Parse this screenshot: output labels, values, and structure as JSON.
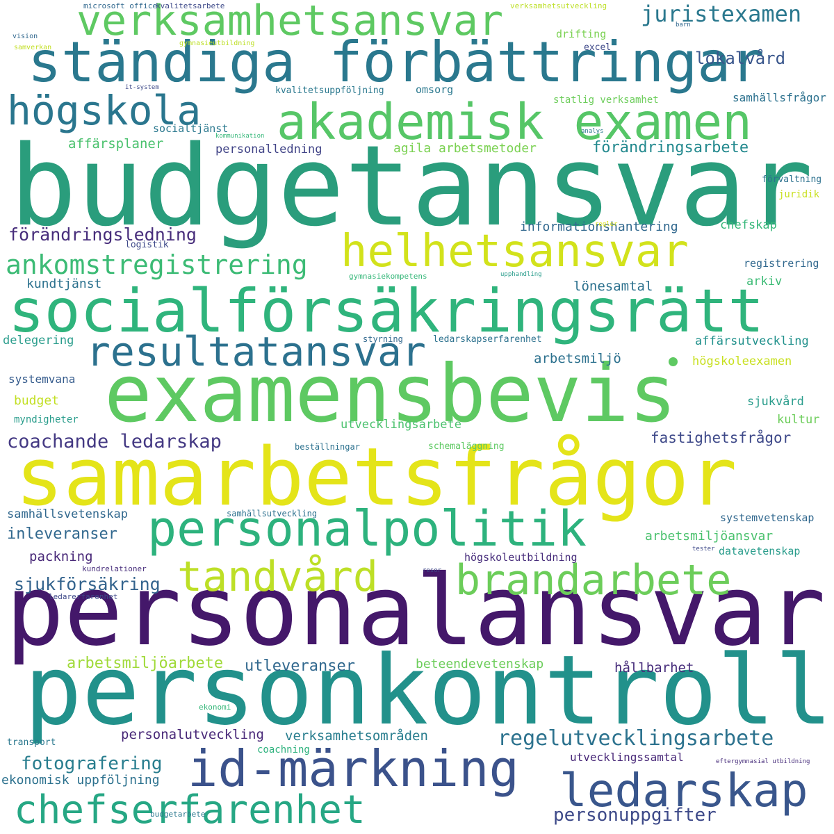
{
  "words": {
    "budgetansvar": {
      "text": "budgetansvar",
      "color": "#2a9d7c"
    },
    "personalansvar": {
      "text": "personalansvar",
      "color": "#44186a"
    },
    "personkontroll": {
      "text": "personkontroll",
      "color": "#22918b"
    },
    "samarbetsfragor": {
      "text": "samarbetsfrågor",
      "color": "#e4e419"
    },
    "examensbevis": {
      "text": "examensbevis",
      "color": "#5ec962"
    },
    "socialforsakringsratt": {
      "text": "socialförsäkringsrätt",
      "color": "#2fb47c"
    },
    "standiga_forbattringar": {
      "text": "ständiga förbättringar",
      "color": "#2a788e"
    },
    "akademisk_examen": {
      "text": "akademisk examen",
      "color": "#56c667"
    },
    "id_markning": {
      "text": "id-märkning",
      "color": "#3b528b"
    },
    "personalpolitik": {
      "text": "personalpolitik",
      "color": "#2db27d"
    },
    "verksamhetsansvar": {
      "text": "verksamhetsansvar",
      "color": "#5ec962"
    },
    "helhetsansvar": {
      "text": "helhetsansvar",
      "color": "#d2e21b"
    },
    "resultatansvar": {
      "text": "resultatansvar",
      "color": "#2c718e"
    },
    "hogskola": {
      "text": "högskola",
      "color": "#2a768e"
    },
    "brandarbete": {
      "text": "brandarbete",
      "color": "#6ccd5a"
    },
    "tandvard": {
      "text": "tandvård",
      "color": "#bddf26"
    },
    "ledarskap": {
      "text": "ledarskap",
      "color": "#39568c"
    },
    "chefserfarenhet": {
      "text": "chefserfarenhet",
      "color": "#26a784"
    },
    "ankomstregistrering": {
      "text": "ankomstregistrering",
      "color": "#3cbb75"
    },
    "juristexamen": {
      "text": "juristexamen",
      "color": "#2a788e"
    },
    "lokalvard": {
      "text": "lokalvård",
      "color": "#39568c"
    },
    "forandringsarbete": {
      "text": "förändringsarbete",
      "color": "#23898e"
    },
    "coachande_ledarskap": {
      "text": "coachande ledarskap",
      "color": "#443983"
    },
    "forandringsledning": {
      "text": "förändringsledning",
      "color": "#472d7b"
    },
    "regelutvecklingsarbete": {
      "text": "regelutvecklingsarbete",
      "color": "#2c728e"
    },
    "personuppgifter": {
      "text": "personuppgifter",
      "color": "#3e4a89"
    },
    "fotografering": {
      "text": "fotografering",
      "color": "#287d8e"
    },
    "sjukforsakring": {
      "text": "sjukförsäkring",
      "color": "#33638d"
    },
    "fastighetsfragor": {
      "text": "fastighetsfrågor",
      "color": "#3e4989"
    },
    "arbetsmiljoarbete": {
      "text": "arbetsmiljöarbete",
      "color": "#a0da39"
    },
    "utleveranser": {
      "text": "utleveranser",
      "color": "#31688e"
    },
    "personalutveckling": {
      "text": "personalutveckling",
      "color": "#482878"
    },
    "verksamhetsomraden": {
      "text": "verksamhetsområden",
      "color": "#287d8e"
    },
    "inleveranser": {
      "text": "inleveranser",
      "color": "#31688e"
    },
    "packning": {
      "text": "packning",
      "color": "#482878"
    },
    "samhallsvetenskap": {
      "text": "samhällsvetenskap",
      "color": "#31688e"
    },
    "affarsplaner": {
      "text": "affärsplaner",
      "color": "#4ac16d"
    },
    "socialtjanst": {
      "text": "socialtjänst",
      "color": "#2a788e"
    },
    "personalledning": {
      "text": "personalledning",
      "color": "#414487"
    },
    "agila_arbetsmetoder": {
      "text": "agila arbetsmetoder",
      "color": "#7ad151"
    },
    "informationshantering": {
      "text": "informationshantering",
      "color": "#31688e"
    },
    "chefskap": {
      "text": "chefskap",
      "color": "#35b779"
    },
    "kundtjanst": {
      "text": "kundtjänst",
      "color": "#2c718e"
    },
    "lonesamtal": {
      "text": "lönesamtal",
      "color": "#2c718e"
    },
    "arkiv": {
      "text": "arkiv",
      "color": "#3cbb75"
    },
    "delegering": {
      "text": "delegering",
      "color": "#2a9d8c"
    },
    "affarsutveckling": {
      "text": "affärsutveckling",
      "color": "#21918c"
    },
    "arbetsmiljo": {
      "text": "arbetsmiljö",
      "color": "#2c718e"
    },
    "hogskoleexamen": {
      "text": "högskoleexamen",
      "color": "#c8e020"
    },
    "systemvana": {
      "text": "systemvana",
      "color": "#365c8d"
    },
    "budget": {
      "text": "budget",
      "color": "#c2df23"
    },
    "myndigheter": {
      "text": "myndigheter",
      "color": "#2a9d8c"
    },
    "sjukvard": {
      "text": "sjukvård",
      "color": "#2a9d8c"
    },
    "kultur": {
      "text": "kultur",
      "color": "#6ccd5a"
    },
    "utvecklingsarbete": {
      "text": "utvecklingsarbete",
      "color": "#4ac16d"
    },
    "bestallningar": {
      "text": "beställningar",
      "color": "#2c718e"
    },
    "schemalaggning": {
      "text": "schemaläggning",
      "color": "#5ec962"
    },
    "samhallsutveckling": {
      "text": "samhällsutveckling",
      "color": "#2c718e"
    },
    "systemvetenskap": {
      "text": "systemvetenskap",
      "color": "#31688e"
    },
    "arbetsmiljoansvar": {
      "text": "arbetsmiljöansvar",
      "color": "#4ac16d"
    },
    "hogskoleutbildning": {
      "text": "högskoleutbildning",
      "color": "#472d7b"
    },
    "datavetenskap": {
      "text": "datavetenskap",
      "color": "#2a9d8c"
    },
    "tester": {
      "text": "tester",
      "color": "#3e4989"
    },
    "kundrelationer": {
      "text": "kundrelationer",
      "color": "#472d7b"
    },
    "ledarerfarenhet": {
      "text": "ledarerfarenhet",
      "color": "#3e4989"
    },
    "resor": {
      "text": "resor",
      "color": "#3e4989"
    },
    "beteendevetenskap": {
      "text": "beteendevetenskap",
      "color": "#6ccd5a"
    },
    "hallbarhet": {
      "text": "hållbarhet",
      "color": "#472d7b"
    },
    "ekonomi": {
      "text": "ekonomi",
      "color": "#35b779"
    },
    "transport": {
      "text": "transport",
      "color": "#2a788e"
    },
    "coachning": {
      "text": "coachning",
      "color": "#2db27d"
    },
    "utvecklingssamtal": {
      "text": "utvecklingssamtal",
      "color": "#482878"
    },
    "eftergymnasial_utbildning": {
      "text": "eftergymnasial utbildning",
      "color": "#472d7b"
    },
    "ekonomisk_uppfoljning": {
      "text": "ekonomisk uppföljning",
      "color": "#2c718e"
    },
    "budgetarbete": {
      "text": "budgetarbete",
      "color": "#2a788e"
    },
    "microsoft_office": {
      "text": "microsoft office",
      "color": "#31688e"
    },
    "kvalitetsarbete": {
      "text": "kvalitetsarbete",
      "color": "#3e4a89"
    },
    "verksamhetsutveckling": {
      "text": "verksamhetsutveckling",
      "color": "#bddf26"
    },
    "vision": {
      "text": "vision",
      "color": "#31688e"
    },
    "samverkan": {
      "text": "samverkan",
      "color": "#c2df23"
    },
    "gymnasieutbildning": {
      "text": "gymnasieutbildning",
      "color": "#bddf26"
    },
    "barn": {
      "text": "barn",
      "color": "#31688e"
    },
    "drifting": {
      "text": "drifting",
      "color": "#7ad151"
    },
    "excel": {
      "text": "excel",
      "color": "#3e4989"
    },
    "it_system": {
      "text": "it-system",
      "color": "#3e4a89"
    },
    "kvalitetsuppfoljning": {
      "text": "kvalitetsuppföljning",
      "color": "#2a788e"
    },
    "omsorg": {
      "text": "omsorg",
      "color": "#2a788e"
    },
    "samhallsfragor": {
      "text": "samhällsfrågor",
      "color": "#2c718e"
    },
    "statlig_verksamhet": {
      "text": "statlig verksamhet",
      "color": "#6ccd5a"
    },
    "kommunikation": {
      "text": "kommunikation",
      "color": "#35b779"
    },
    "analys": {
      "text": "analys",
      "color": "#2a788e"
    },
    "forvaltning": {
      "text": "förvaltning",
      "color": "#2c718e"
    },
    "juridik": {
      "text": "juridik",
      "color": "#c8e020"
    },
    "regler": {
      "text": "regler",
      "color": "#dce319"
    },
    "logistik": {
      "text": "logistik",
      "color": "#3e4989"
    },
    "registrering": {
      "text": "registrering",
      "color": "#31688e"
    },
    "gymnasiekompetens": {
      "text": "gymnasiekompetens",
      "color": "#35b779"
    },
    "upphandling": {
      "text": "upphandling",
      "color": "#2a9d8c"
    },
    "styrning": {
      "text": "styrning",
      "color": "#31688e"
    },
    "ledarskapserfarenhet": {
      "text": "ledarskapserfarenhet",
      "color": "#2c718e"
    }
  },
  "dot_color": "#5ec962"
}
